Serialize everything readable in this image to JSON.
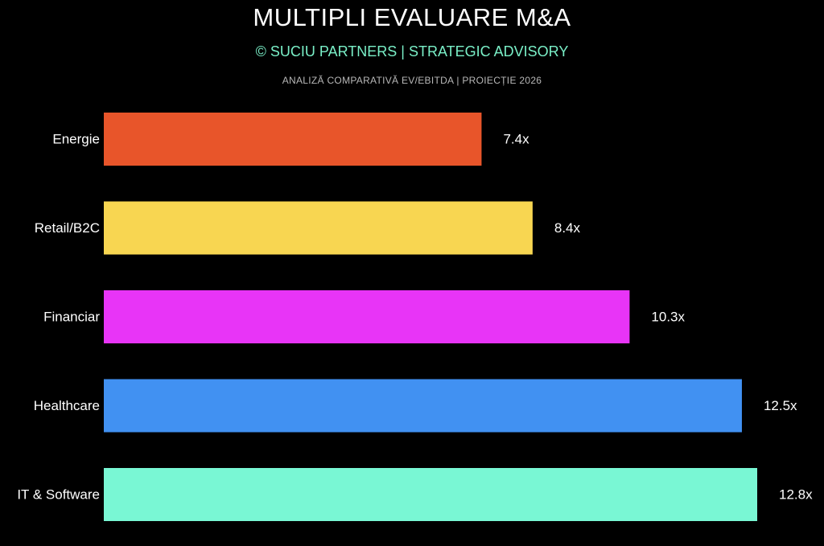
{
  "header": {
    "title": "MULTIPLI EVALUARE M&A",
    "subtitle": "© SUCIU PARTNERS | STRATEGIC ADVISORY",
    "caption": "ANALIZĂ COMPARATIVĂ EV/EBITDA | PROIECȚIE 2026"
  },
  "chart_data": {
    "type": "bar",
    "orientation": "horizontal",
    "categories": [
      "Energie",
      "Retail/B2C",
      "Financiar",
      "Healthcare",
      "IT & Software"
    ],
    "values": [
      7.4,
      8.4,
      10.3,
      12.5,
      12.8
    ],
    "value_labels": [
      "7.4x",
      "8.4x",
      "10.3x",
      "12.5x",
      "12.8x"
    ],
    "colors": [
      "#e8552a",
      "#f8d651",
      "#e834f7",
      "#4191f2",
      "#79f7d4"
    ],
    "title": "MULTIPLI EVALUARE M&A",
    "xlabel": "",
    "ylabel": "",
    "xlim": [
      0,
      12.8
    ],
    "grid": false,
    "legend": "none"
  }
}
